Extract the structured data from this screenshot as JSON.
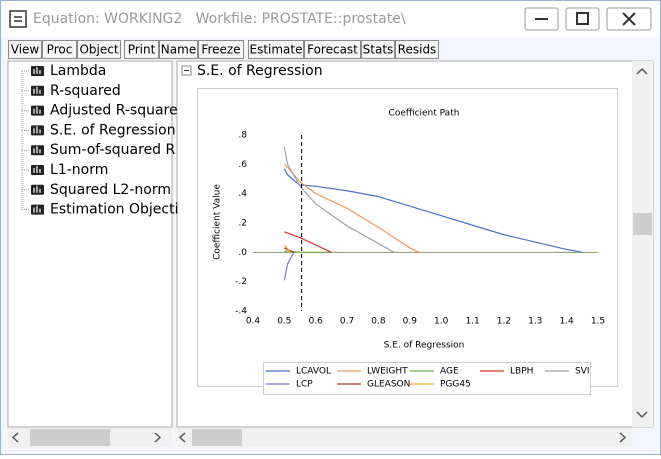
{
  "window": {
    "title": "Equation: WORKING2   Workfile: PROSTATE::prostate\\"
  },
  "toolbar": [
    "View",
    "Proc",
    "Object",
    "Print",
    "Name",
    "Freeze",
    "Estimate",
    "Forecast",
    "Stats",
    "Resids"
  ],
  "tree": [
    "Lambda",
    "R-squared",
    "Adjusted R-square",
    "S.E. of Regression",
    "Sum-of-squared R",
    "L1-norm",
    "Squared L2-norm",
    "Estimation Objecti"
  ],
  "section": {
    "title": "S.E. of Regression"
  },
  "chart_data": {
    "type": "line",
    "title": "Coefficient Path",
    "y_label": "Coefficient Value",
    "x_label": "S.E. of Regression",
    "xlim": [
      0.4,
      1.5
    ],
    "xticks": [
      0.4,
      0.5,
      0.6,
      0.7,
      0.8,
      0.9,
      {
        "value": 1,
        "label": "1.0"
      },
      1.1,
      1.2,
      1.3,
      1.4,
      1.5
    ],
    "ylim": [
      -0.4,
      0.8
    ],
    "yticks": [
      {
        "value": 0.8,
        "label": ".8"
      },
      {
        "value": 0.6,
        "label": ".6"
      },
      {
        "value": 0.4,
        "label": ".4"
      },
      {
        "value": 0.2,
        "label": ".2"
      },
      {
        "value": 0,
        "label": ".0"
      },
      {
        "value": -0.2,
        "label": "-.2"
      },
      {
        "value": -0.4,
        "label": "-.4"
      }
    ],
    "vline": 0.555,
    "series": [
      {
        "name": "LCAVOL",
        "color": "#4472c4",
        "x": [
          0.5,
          0.51,
          0.53,
          0.55,
          0.6,
          0.7,
          0.8,
          1.0,
          1.2,
          1.4,
          1.45
        ],
        "values": [
          0.57,
          0.53,
          0.49,
          0.46,
          0.45,
          0.42,
          0.38,
          0.25,
          0.12,
          0.02,
          0
        ]
      },
      {
        "name": "LWEIGHT",
        "color": "#ed9a5e",
        "x": [
          0.5,
          0.51,
          0.55,
          0.6,
          0.7,
          0.8,
          0.9,
          0.93
        ],
        "values": [
          0.6,
          0.58,
          0.48,
          0.4,
          0.3,
          0.17,
          0.03,
          0
        ]
      },
      {
        "name": "AGE",
        "color": "#70ad47",
        "x": [
          0.5,
          0.55,
          0.65
        ],
        "values": [
          0.01,
          0,
          0
        ]
      },
      {
        "name": "LBPH",
        "color": "#d9302c",
        "x": [
          0.5,
          0.55,
          0.6,
          0.65
        ],
        "values": [
          0.14,
          0.1,
          0.05,
          0
        ]
      },
      {
        "name": "SVI",
        "color": "#a0a0a0",
        "x": [
          0.5,
          0.51,
          0.55,
          0.6,
          0.7,
          0.8,
          0.85
        ],
        "values": [
          0.72,
          0.6,
          0.45,
          0.33,
          0.18,
          0.06,
          0
        ]
      },
      {
        "name": "LCP",
        "color": "#7b7bd0",
        "x": [
          0.5,
          0.51,
          0.53
        ],
        "values": [
          -0.19,
          -0.08,
          0
        ]
      },
      {
        "name": "GLEASON",
        "color": "#b03030",
        "x": [
          0.5,
          0.53
        ],
        "values": [
          0.03,
          0
        ]
      },
      {
        "name": "PGG45",
        "color": "#e0b030",
        "x": [
          0.5,
          0.52
        ],
        "values": [
          0.05,
          0
        ]
      }
    ]
  }
}
